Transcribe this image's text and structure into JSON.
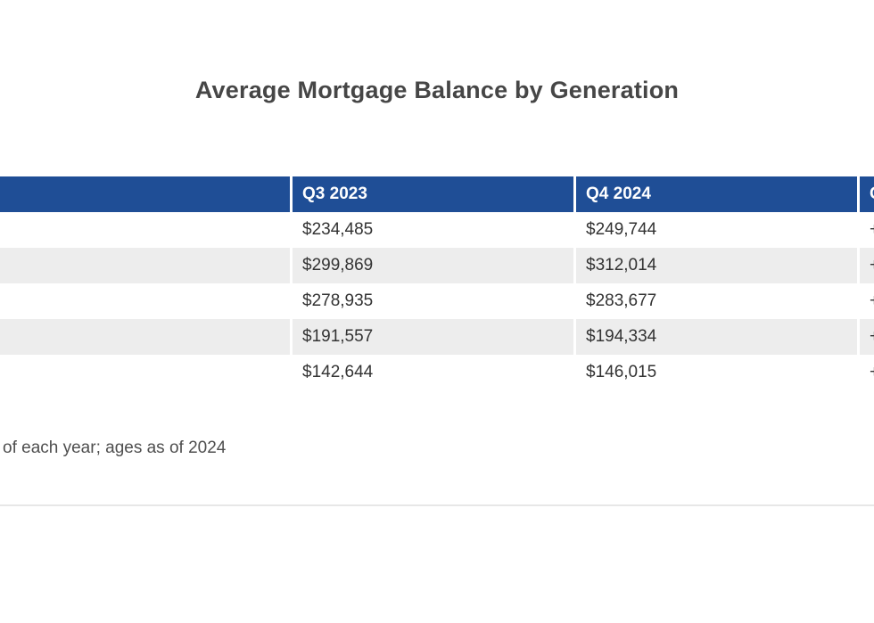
{
  "page": {
    "title": "Average Mortgage Balance by Generation",
    "footnote": "of each year; ages as of 2024"
  },
  "table": {
    "columns": [
      {
        "key": "generation",
        "label": ""
      },
      {
        "key": "q3-2023",
        "label": "Q3 2023"
      },
      {
        "key": "q4-2024",
        "label": "Q4 2024"
      },
      {
        "key": "change",
        "label": "C"
      }
    ],
    "rows": [
      {
        "cells": [
          "",
          "$234,485",
          "$249,744",
          "+"
        ]
      },
      {
        "cells": [
          "",
          "$299,869",
          "$312,014",
          "+"
        ]
      },
      {
        "cells": [
          "",
          "$278,935",
          "$283,677",
          "+"
        ]
      },
      {
        "cells": [
          "",
          "$191,557",
          "$194,334",
          "+"
        ]
      },
      {
        "cells": [
          "",
          "$142,644",
          "$146,015",
          "+"
        ]
      }
    ]
  },
  "chart_data": {
    "type": "table",
    "title": "Average Mortgage Balance by Generation",
    "columns": [
      "",
      "Q3 2023",
      "Q4 2024",
      "C"
    ],
    "rows": [
      [
        "",
        "$234,485",
        "$249,744",
        "+"
      ],
      [
        "",
        "$299,869",
        "$312,014",
        "+"
      ],
      [
        "",
        "$278,935",
        "$283,677",
        "+"
      ],
      [
        "",
        "$191,557",
        "$194,334",
        "+"
      ],
      [
        "",
        "$142,644",
        "$146,015",
        "+"
      ]
    ],
    "series": [
      {
        "name": "Q3 2023",
        "values": [
          234485,
          299869,
          278935,
          191557,
          142644
        ]
      },
      {
        "name": "Q4 2024",
        "values": [
          249744,
          312014,
          283677,
          194334,
          146015
        ]
      }
    ],
    "footnote": "of each year; ages as of 2024"
  },
  "colors": {
    "header_bg": "#1f4e96",
    "header_text": "#ffffff",
    "stripe_bg": "#ededed",
    "cell_text": "#333333",
    "title_text": "#464646",
    "footnote_text": "#4f4f4f",
    "divider": "#e7e7e7"
  }
}
